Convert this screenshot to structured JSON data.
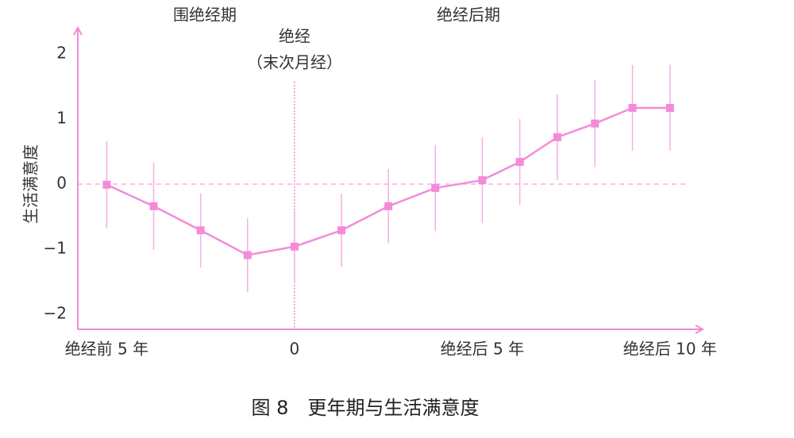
{
  "chart_data": {
    "type": "line",
    "annotations": [
      "围绝经期",
      "绝经后期",
      "绝经",
      "（末次月经）"
    ],
    "y_label": "生活满意度",
    "caption": "图 8　更年期与生活满意度",
    "x": [
      -5,
      -3.75,
      -2.5,
      -1.25,
      0,
      1.25,
      2.5,
      3.75,
      5,
      6,
      7,
      8,
      9,
      10
    ],
    "series": [
      {
        "color": "#f48bd9",
        "values": [
          -0.01,
          -0.34,
          -0.71,
          -1.09,
          -0.96,
          -0.71,
          -0.34,
          -0.06,
          0.06,
          0.34,
          0.72,
          0.93,
          1.17,
          1.17
        ],
        "errors": [
          0.67,
          0.67,
          0.57,
          0.57,
          0.57,
          0.56,
          0.57,
          0.66,
          0.66,
          0.66,
          0.66,
          0.67,
          0.66,
          0.66
        ]
      }
    ],
    "xlim": [
      -5.77,
      10.87
    ],
    "ylim": [
      -2.23,
      2.4
    ],
    "xticks": [
      {
        "value": -5,
        "label": "绝经前 5 年"
      },
      0,
      {
        "value": 5,
        "label": "绝经后 5 年"
      },
      {
        "value": 10,
        "label": "绝经后 10 年"
      }
    ],
    "yticks": [
      {
        "value": -2,
        "label": "−2"
      },
      {
        "value": -1,
        "label": "−1"
      },
      0,
      1,
      2
    ],
    "axis_color": "#f08ad8",
    "error_color": "#f6b0e3"
  }
}
